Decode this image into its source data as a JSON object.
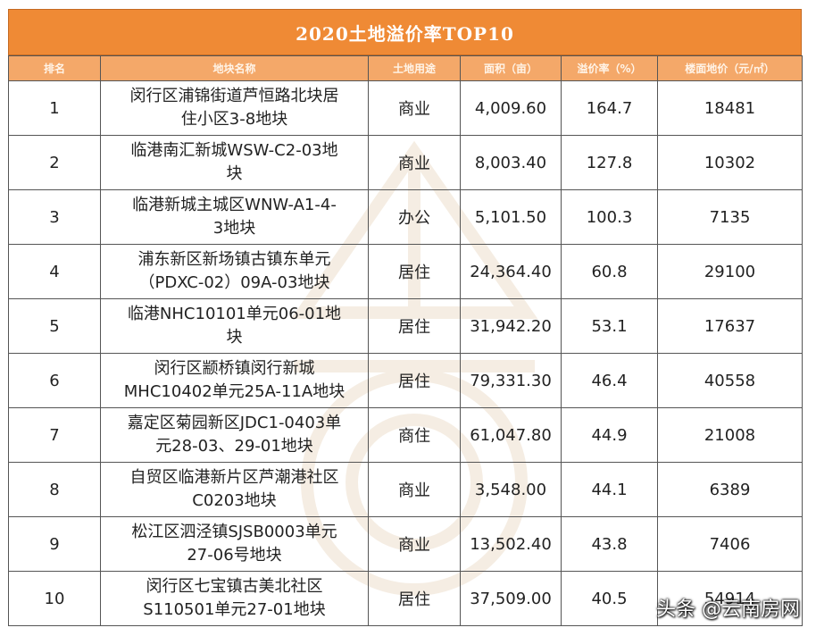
{
  "title": "2020土地溢价率TOP10",
  "headers": [
    "排名",
    "地块名称",
    "土地用途",
    "面积（亩）",
    "溢价率（%）",
    "楼面地价（元/㎡）"
  ],
  "rows": [
    {
      "rank": "1",
      "name_line1": "闵行区浦锦街道芦恒路北块居",
      "name_line2": "住小区3-8地块",
      "use": "商业",
      "area": "4,009.60",
      "premium": "164.7",
      "price": "18481"
    },
    {
      "rank": "2",
      "name_line1": "临港南汇新城WSW-C2-03地",
      "name_line2": "块",
      "use": "商业",
      "area": "8,003.40",
      "premium": "127.8",
      "price": "10302"
    },
    {
      "rank": "3",
      "name_line1": "临港新城主城区WNW-A1-4-",
      "name_line2": "3地块",
      "use": "办公",
      "area": "5,101.50",
      "premium": "100.3",
      "price": "7135"
    },
    {
      "rank": "4",
      "name_line1": "浦东新区新场镇古镇东单元",
      "name_line2": "（PDXC-02）09A-03地块",
      "use": "居住",
      "area": "24,364.40",
      "premium": "60.8",
      "price": "29100"
    },
    {
      "rank": "5",
      "name_line1": "临港NHC10101单元06-01地",
      "name_line2": "块",
      "use": "居住",
      "area": "31,942.20",
      "premium": "53.1",
      "price": "17637"
    },
    {
      "rank": "6",
      "name_line1": "闵行区颛桥镇闵行新城",
      "name_line2": "MHC10402单元25A-11A地块",
      "use": "居住",
      "area": "79,331.30",
      "premium": "46.4",
      "price": "40558"
    },
    {
      "rank": "7",
      "name_line1": "嘉定区菊园新区JDC1-0403单",
      "name_line2": "元28-03、29-01地块",
      "use": "商住",
      "area": "61,047.80",
      "premium": "44.9",
      "price": "21008"
    },
    {
      "rank": "8",
      "name_line1": "自贸区临港新片区芦潮港社区",
      "name_line2": "C0203地块",
      "use": "商业",
      "area": "3,548.00",
      "premium": "44.1",
      "price": "6389"
    },
    {
      "rank": "9",
      "name_line1": "松江区泗泾镇SJSB0003单元",
      "name_line2": "27-06号地块",
      "use": "商业",
      "area": "13,502.40",
      "premium": "43.8",
      "price": "7406"
    },
    {
      "rank": "10",
      "name_line1": "闵行区七宝镇古美北社区",
      "name_line2": "S110501单元27-01地块",
      "use": "居住",
      "area": "37,509.00",
      "premium": "40.5",
      "price": "54914"
    }
  ],
  "credit": "头条 @云南房网",
  "colors": {
    "title_bg": "#ef8a35",
    "header_bg": "#f4a869",
    "border": "#555555"
  }
}
